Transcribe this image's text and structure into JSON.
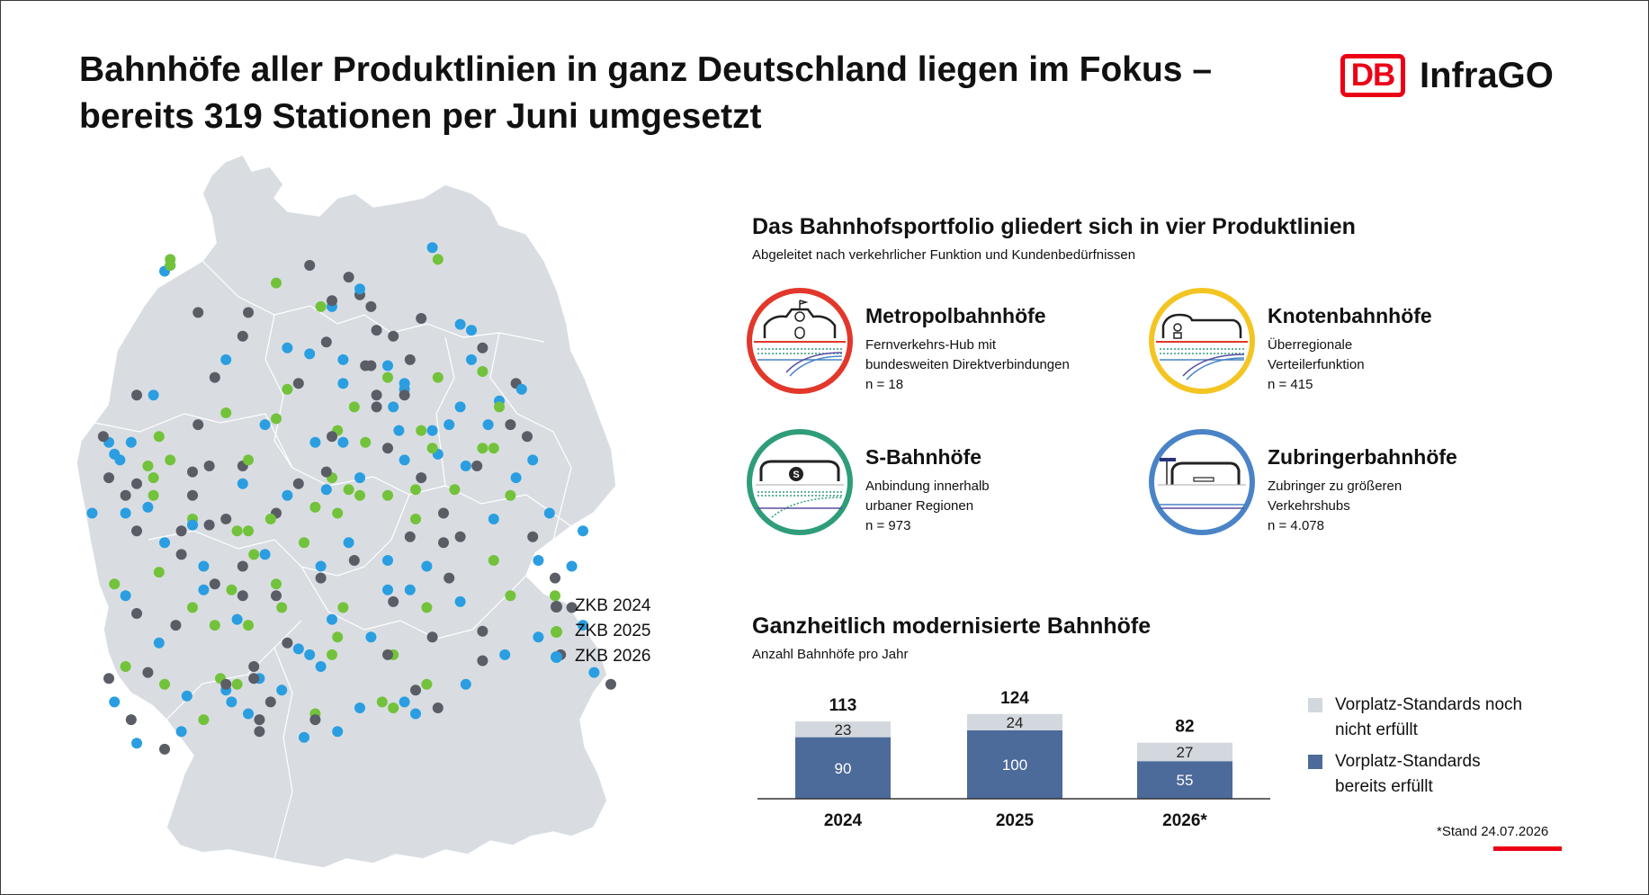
{
  "header": {
    "title_line1": "Bahnhöfe aller Produktlinien in ganz Deutschland liegen im Fokus –",
    "title_line2": "bereits 319 Stationen per Juni umgesetzt",
    "logo_mark": "DB",
    "logo_text": "InfraGO"
  },
  "colors": {
    "brand_red": "#ec0016",
    "zkb_2024": "#5b5d66",
    "zkb_2025": "#73c23b",
    "zkb_2026": "#2a9ee0",
    "map_fill": "#d9dde2",
    "bar_fulfilled": "#4c6a9a",
    "bar_not_fulfilled": "#d3d8de",
    "metropol": "#e2382b",
    "knoten": "#f4c522",
    "sbahn": "#2f9c7a",
    "zubringer": "#4a84c6"
  },
  "map": {
    "legend": [
      {
        "label": "ZKB 2024",
        "color": "#5b5d66"
      },
      {
        "label": "ZKB 2025",
        "color": "#73c23b"
      },
      {
        "label": "ZKB 2026",
        "color": "#2a9ee0"
      }
    ],
    "points": [
      [
        0.43,
        0.23,
        1
      ],
      [
        0.61,
        0.25,
        0
      ],
      [
        0.68,
        0.26,
        2
      ],
      [
        0.29,
        0.28,
        0
      ],
      [
        0.37,
        0.37,
        1
      ],
      [
        0.53,
        0.27,
        0
      ],
      [
        0.52,
        0.33,
        0
      ],
      [
        0.4,
        0.63,
        1
      ],
      [
        0.59,
        0.32,
        0
      ],
      [
        0.72,
        0.3,
        0
      ],
      [
        0.42,
        0.46,
        2
      ],
      [
        0.13,
        0.52,
        1
      ],
      [
        0.46,
        0.44,
        1
      ],
      [
        0.58,
        0.36,
        2
      ],
      [
        0.53,
        0.38,
        0
      ],
      [
        0.61,
        0.44,
        1
      ],
      [
        0.28,
        0.76,
        2
      ],
      [
        0.45,
        0.23,
        2
      ],
      [
        0.64,
        0.35,
        1
      ],
      [
        0.26,
        0.32,
        2
      ],
      [
        0.31,
        0.65,
        1
      ],
      [
        0.39,
        0.36,
        0
      ],
      [
        0.5,
        0.52,
        2
      ],
      [
        0.32,
        0.86,
        2
      ],
      [
        0.45,
        0.22,
        0
      ],
      [
        0.44,
        0.29,
        0
      ],
      [
        0.68,
        0.62,
        0
      ],
      [
        0.22,
        0.67,
        2
      ],
      [
        0.56,
        0.82,
        1
      ],
      [
        0.55,
        0.33,
        2
      ],
      [
        0.72,
        0.34,
        1
      ],
      [
        0.47,
        0.32,
        2
      ],
      [
        0.35,
        0.7,
        1
      ],
      [
        0.65,
        0.58,
        0
      ],
      [
        0.47,
        0.46,
        2
      ],
      [
        0.62,
        0.87,
        1
      ],
      [
        0.74,
        0.47,
        1
      ],
      [
        0.2,
        0.6,
        2
      ],
      [
        0.74,
        0.66,
        1
      ],
      [
        0.33,
        0.43,
        2
      ],
      [
        0.45,
        0.45,
        0
      ],
      [
        0.3,
        0.77,
        1
      ],
      [
        0.55,
        0.66,
        2
      ],
      [
        0.55,
        0.35,
        1
      ],
      [
        0.53,
        0.4,
        0
      ],
      [
        0.3,
        0.24,
        0
      ],
      [
        0.64,
        0.48,
        2
      ],
      [
        0.5,
        0.55,
        1
      ],
      [
        0.6,
        0.54,
        1
      ],
      [
        0.77,
        0.72,
        1
      ],
      [
        0.47,
        0.36,
        2
      ],
      [
        0.6,
        0.59,
        1
      ],
      [
        0.63,
        0.79,
        0
      ],
      [
        0.55,
        0.47,
        0
      ],
      [
        0.49,
        0.66,
        0
      ],
      [
        0.2,
        0.59,
        1
      ],
      [
        0.58,
        0.37,
        2
      ],
      [
        0.37,
        0.3,
        2
      ],
      [
        0.36,
        0.74,
        1
      ],
      [
        0.33,
        0.65,
        2
      ],
      [
        0.39,
        0.53,
        0
      ],
      [
        0.51,
        0.33,
        0
      ],
      [
        0.43,
        0.67,
        2
      ],
      [
        0.35,
        0.42,
        1
      ],
      [
        0.35,
        0.58,
        0
      ],
      [
        0.5,
        0.21,
        0
      ],
      [
        0.41,
        0.31,
        2
      ],
      [
        0.27,
        0.71,
        1
      ],
      [
        0.63,
        0.47,
        1
      ],
      [
        0.29,
        0.67,
        0
      ],
      [
        0.63,
        0.44,
        2
      ],
      [
        0.57,
        0.44,
        2
      ],
      [
        0.58,
        0.38,
        0
      ],
      [
        0.59,
        0.71,
        2
      ],
      [
        0.48,
        0.54,
        1
      ],
      [
        0.55,
        0.82,
        0
      ],
      [
        0.68,
        0.4,
        2
      ],
      [
        0.16,
        0.15,
        1
      ],
      [
        0.41,
        0.16,
        0
      ],
      [
        0.63,
        0.13,
        2
      ],
      [
        0.64,
        0.15,
        1
      ],
      [
        0.16,
        0.16,
        2
      ],
      [
        0.21,
        0.24,
        0
      ],
      [
        0.35,
        0.19,
        1
      ],
      [
        0.15,
        0.17,
        2
      ],
      [
        0.56,
        0.28,
        0
      ],
      [
        0.52,
        0.23,
        0
      ],
      [
        0.16,
        0.16,
        1
      ],
      [
        0.48,
        0.18,
        0
      ],
      [
        0.5,
        0.2,
        2
      ],
      [
        0.05,
        0.46,
        2
      ],
      [
        0.77,
        0.55,
        1
      ],
      [
        0.29,
        0.5,
        0
      ],
      [
        0.2,
        0.51,
        0
      ],
      [
        0.26,
        0.41,
        1
      ],
      [
        0.24,
        0.35,
        0
      ],
      [
        0.12,
        0.5,
        1
      ],
      [
        0.04,
        0.45,
        0
      ],
      [
        0.07,
        0.49,
        2
      ],
      [
        0.23,
        0.5,
        0
      ],
      [
        0.2,
        0.55,
        0
      ],
      [
        0.23,
        0.6,
        0
      ],
      [
        0.18,
        0.61,
        0
      ],
      [
        0.16,
        0.49,
        1
      ],
      [
        0.1,
        0.53,
        0
      ],
      [
        0.2,
        0.6,
        2
      ],
      [
        0.29,
        0.53,
        2
      ],
      [
        0.1,
        0.61,
        0
      ],
      [
        0.26,
        0.59,
        0
      ],
      [
        0.08,
        0.58,
        2
      ],
      [
        0.05,
        0.52,
        0
      ],
      [
        0.08,
        0.55,
        0
      ],
      [
        0.02,
        0.58,
        2
      ],
      [
        0.12,
        0.57,
        2
      ],
      [
        0.13,
        0.55,
        1
      ],
      [
        0.06,
        0.48,
        2
      ],
      [
        0.28,
        0.61,
        1
      ],
      [
        0.09,
        0.46,
        2
      ],
      [
        0.14,
        0.45,
        1
      ],
      [
        0.1,
        0.38,
        0
      ],
      [
        0.3,
        0.49,
        1
      ],
      [
        0.3,
        0.61,
        1
      ],
      [
        0.13,
        0.38,
        2
      ],
      [
        0.21,
        0.43,
        0
      ],
      [
        0.35,
        0.72,
        0
      ],
      [
        0.24,
        0.77,
        1
      ],
      [
        0.22,
        0.71,
        2
      ],
      [
        0.31,
        0.84,
        0
      ],
      [
        0.29,
        0.72,
        0
      ],
      [
        0.32,
        0.93,
        0
      ],
      [
        0.37,
        0.8,
        0
      ],
      [
        0.25,
        0.86,
        1
      ],
      [
        0.26,
        0.88,
        2
      ],
      [
        0.31,
        0.86,
        0
      ],
      [
        0.28,
        0.87,
        1
      ],
      [
        0.26,
        0.87,
        0
      ],
      [
        0.27,
        0.9,
        2
      ],
      [
        0.32,
        0.95,
        0
      ],
      [
        0.42,
        0.92,
        1
      ],
      [
        0.45,
        0.82,
        1
      ],
      [
        0.41,
        0.82,
        2
      ],
      [
        0.39,
        0.81,
        2
      ],
      [
        0.45,
        0.76,
        2
      ],
      [
        0.52,
        0.79,
        2
      ],
      [
        0.55,
        0.71,
        2
      ],
      [
        0.43,
        0.69,
        0
      ],
      [
        0.46,
        0.79,
        1
      ],
      [
        0.47,
        0.74,
        1
      ],
      [
        0.56,
        0.73,
        0
      ],
      [
        0.42,
        0.57,
        1
      ],
      [
        0.45,
        0.52,
        1
      ],
      [
        0.44,
        0.51,
        0
      ],
      [
        0.49,
        0.4,
        1
      ],
      [
        0.56,
        0.4,
        2
      ],
      [
        0.66,
        0.43,
        2
      ],
      [
        0.7,
        0.32,
        2
      ],
      [
        0.7,
        0.27,
        2
      ],
      [
        0.44,
        0.54,
        2
      ],
      [
        0.46,
        0.58,
        1
      ],
      [
        0.48,
        0.63,
        2
      ],
      [
        0.51,
        0.46,
        1
      ],
      [
        0.65,
        0.63,
        0
      ],
      [
        0.62,
        0.67,
        2
      ],
      [
        0.59,
        0.62,
        0
      ],
      [
        0.37,
        0.55,
        2
      ],
      [
        0.34,
        0.59,
        1
      ],
      [
        0.43,
        0.84,
        2
      ],
      [
        0.36,
        0.88,
        2
      ],
      [
        0.34,
        0.9,
        0
      ],
      [
        0.3,
        0.92,
        2
      ],
      [
        0.4,
        0.96,
        2
      ],
      [
        0.42,
        0.93,
        0
      ],
      [
        0.46,
        0.95,
        2
      ],
      [
        0.5,
        0.91,
        2
      ],
      [
        0.54,
        0.9,
        1
      ],
      [
        0.6,
        0.92,
        2
      ],
      [
        0.64,
        0.91,
        0
      ],
      [
        0.69,
        0.87,
        2
      ],
      [
        0.72,
        0.83,
        0
      ],
      [
        0.76,
        0.82,
        2
      ],
      [
        0.72,
        0.78,
        0
      ],
      [
        0.68,
        0.73,
        2
      ],
      [
        0.6,
        0.88,
        0
      ],
      [
        0.58,
        0.9,
        2
      ],
      [
        0.56,
        0.91,
        1
      ],
      [
        0.66,
        0.69,
        0
      ],
      [
        0.62,
        0.74,
        1
      ],
      [
        0.61,
        0.52,
        0
      ],
      [
        0.58,
        0.49,
        2
      ],
      [
        0.55,
        0.55,
        1
      ],
      [
        0.67,
        0.54,
        1
      ],
      [
        0.69,
        0.5,
        2
      ],
      [
        0.71,
        0.5,
        0
      ],
      [
        0.72,
        0.47,
        1
      ],
      [
        0.73,
        0.43,
        2
      ],
      [
        0.75,
        0.39,
        2
      ],
      [
        0.78,
        0.36,
        0
      ],
      [
        0.79,
        0.37,
        2
      ],
      [
        0.75,
        0.4,
        1
      ],
      [
        0.77,
        0.43,
        0
      ],
      [
        0.8,
        0.45,
        0
      ],
      [
        0.81,
        0.49,
        2
      ],
      [
        0.78,
        0.52,
        2
      ],
      [
        0.74,
        0.59,
        2
      ],
      [
        0.81,
        0.62,
        0
      ],
      [
        0.82,
        0.66,
        2
      ],
      [
        0.85,
        0.69,
        0
      ],
      [
        0.88,
        0.67,
        2
      ],
      [
        0.85,
        0.72,
        1
      ],
      [
        0.84,
        0.58,
        2
      ],
      [
        0.9,
        0.61,
        2
      ],
      [
        0.88,
        0.74,
        0
      ],
      [
        0.9,
        0.77,
        2
      ],
      [
        0.82,
        0.79,
        2
      ],
      [
        0.86,
        0.82,
        0
      ],
      [
        0.92,
        0.85,
        2
      ],
      [
        0.95,
        0.87,
        0
      ],
      [
        0.05,
        0.86,
        0
      ],
      [
        0.08,
        0.84,
        1
      ],
      [
        0.06,
        0.9,
        2
      ],
      [
        0.09,
        0.93,
        0
      ],
      [
        0.1,
        0.97,
        2
      ],
      [
        0.15,
        0.98,
        0
      ],
      [
        0.18,
        0.95,
        2
      ],
      [
        0.22,
        0.93,
        1
      ],
      [
        0.19,
        0.89,
        2
      ],
      [
        0.15,
        0.87,
        1
      ],
      [
        0.12,
        0.85,
        0
      ],
      [
        0.14,
        0.8,
        2
      ],
      [
        0.17,
        0.77,
        0
      ],
      [
        0.2,
        0.74,
        1
      ],
      [
        0.24,
        0.7,
        0
      ],
      [
        0.1,
        0.75,
        0
      ],
      [
        0.08,
        0.72,
        2
      ],
      [
        0.06,
        0.7,
        1
      ],
      [
        0.18,
        0.65,
        0
      ],
      [
        0.15,
        0.63,
        2
      ],
      [
        0.14,
        0.68,
        1
      ]
    ]
  },
  "portfolio": {
    "title": "Das Bahnhofsportfolio gliedert sich in vier Produktlinien",
    "subtitle": "Abgeleitet nach verkehrlicher Funktion und Kundenbedürfnissen",
    "lines": [
      {
        "name": "Metropolbahnhöfe",
        "desc1": "Fernverkehrs-Hub mit",
        "desc2": "bundesweiten Direktverbindungen",
        "count": "n = 18",
        "icon": "metropol-station-icon"
      },
      {
        "name": "Knotenbahnhöfe",
        "desc1": "Überregionale",
        "desc2": "Verteilerfunktion",
        "count": "n = 415",
        "icon": "knoten-station-icon"
      },
      {
        "name": "S-Bahnhöfe",
        "desc1": "Anbindung innerhalb",
        "desc2": "urbaner Regionen",
        "count": "n = 973",
        "icon": "sbahn-station-icon"
      },
      {
        "name": "Zubringerbahnhöfe",
        "desc1": "Zubringer zu größeren",
        "desc2": "Verkehrshubs",
        "count": "n = 4.078",
        "icon": "zubringer-station-icon"
      }
    ]
  },
  "modernized": {
    "title": "Ganzheitlich modernisierte Bahnhöfe",
    "subtitle": "Anzahl Bahnhöfe pro Jahr",
    "legend_not_fulfilled_1": "Vorplatz-Standards noch",
    "legend_not_fulfilled_2": "nicht erfüllt",
    "legend_fulfilled_1": "Vorplatz-Standards",
    "legend_fulfilled_2": "bereits erfüllt",
    "footnote": "*Stand 24.07.2026"
  },
  "chart_data": {
    "type": "bar",
    "stacked": true,
    "title": "Ganzheitlich modernisierte Bahnhöfe",
    "subtitle": "Anzahl Bahnhöfe pro Jahr",
    "categories": [
      "2024",
      "2025",
      "2026*"
    ],
    "totals": [
      113,
      124,
      82
    ],
    "series": [
      {
        "name": "Vorplatz-Standards bereits erfüllt",
        "values": [
          90,
          100,
          55
        ],
        "color": "#4c6a9a"
      },
      {
        "name": "Vorplatz-Standards noch nicht erfüllt",
        "values": [
          23,
          24,
          27
        ],
        "color": "#d3d8de"
      }
    ],
    "ylim": [
      0,
      124
    ],
    "grid": false,
    "legend_position": "right"
  }
}
